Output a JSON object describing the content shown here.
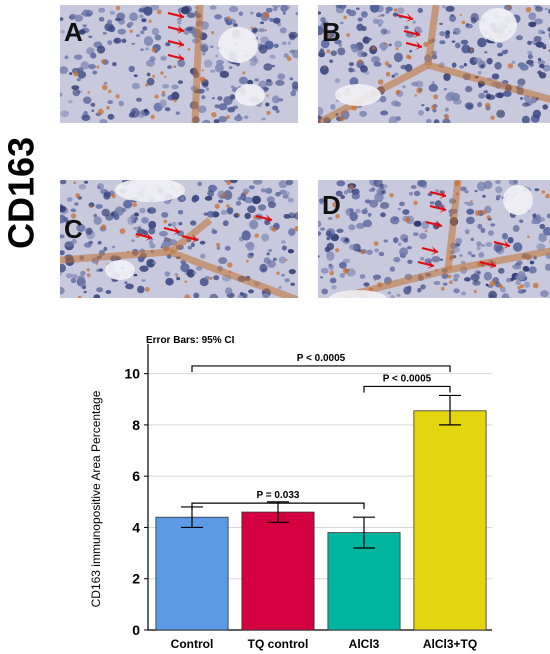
{
  "figure": {
    "stain_label": "CD163",
    "panels": [
      {
        "letter": "A"
      },
      {
        "letter": "B"
      },
      {
        "letter": "C"
      },
      {
        "letter": "D"
      }
    ]
  },
  "chart_data": {
    "type": "bar",
    "title": "Error Bars: 95% CI",
    "xlabel": "",
    "ylabel": "CD163 immunopositive Area Percentage",
    "categories": [
      "Control",
      "TQ control",
      "AlCl3",
      "AlCl3+TQ"
    ],
    "values": [
      4.4,
      4.6,
      3.8,
      8.55
    ],
    "ci_low": [
      4.0,
      4.2,
      3.2,
      8.0
    ],
    "ci_high": [
      4.8,
      5.0,
      4.4,
      9.15
    ],
    "colors": [
      "#5b9be6",
      "#d5003f",
      "#00b5a0",
      "#e3d60f"
    ],
    "ylim": [
      0,
      11
    ],
    "yticks": [
      0,
      2,
      4,
      6,
      8,
      10
    ],
    "grid": true,
    "annotations": [
      {
        "text": "P = 0.033",
        "from": "Control",
        "to": "AlCl3"
      },
      {
        "text": "P < 0.0005",
        "from": "AlCl3",
        "to": "AlCl3+TQ"
      },
      {
        "text": "P < 0.0005",
        "from": "Control",
        "to": "AlCl3+TQ"
      }
    ]
  }
}
